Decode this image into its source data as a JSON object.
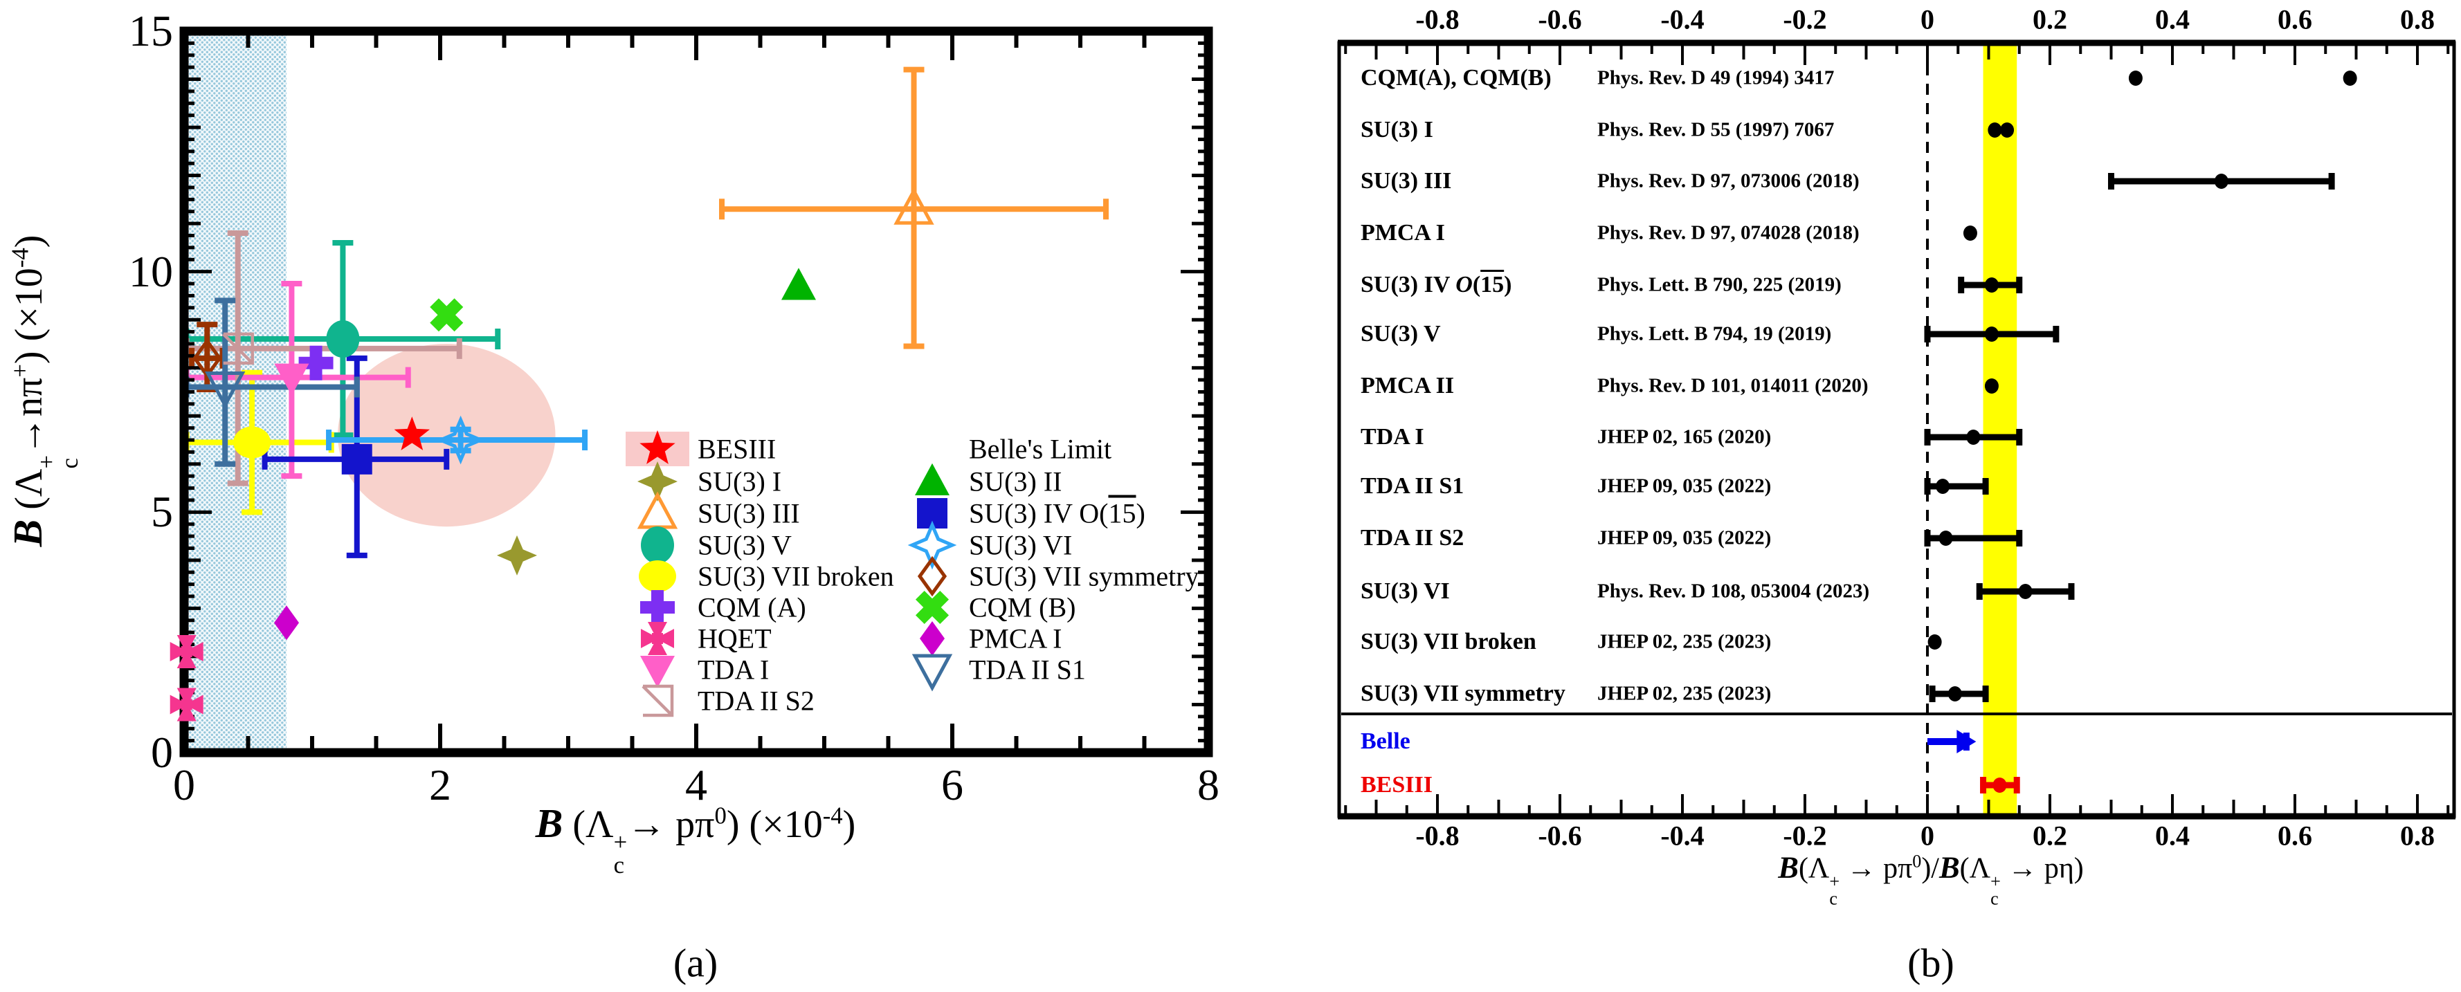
{
  "chart_data": [
    {
      "id": "panel-a",
      "type": "scatter",
      "caption": "(a)",
      "x_label": "\\b{B} (Λ^{+}_{c}→ pπ^{0}) (×10^{-4})",
      "y_label": "\\b{B} (Λ^{+}_{c}→nπ^{+}) (×10^{-4})",
      "xlim": [
        0,
        8
      ],
      "ylim": [
        0,
        15
      ],
      "x_ticks": [
        0,
        2,
        4,
        6,
        8
      ],
      "y_ticks": [
        0,
        5,
        10,
        15
      ],
      "belle_limit_band": {
        "x": [
          0,
          0.8
        ],
        "style": "hatched-lightblue",
        "dot_color": "#97c8dc",
        "bg_color": "#f2f8fb"
      },
      "besiii_contour": {
        "x": 2.05,
        "y": 6.6,
        "rx": 0.85,
        "ry": 1.9,
        "color": "#f8d2cc"
      },
      "series": [
        {
          "name": "BESIII",
          "marker": "star5",
          "color": "#ff0000",
          "open": false,
          "points": [
            {
              "x": 1.78,
              "y": 6.6
            }
          ]
        },
        {
          "name": "SU(3) I",
          "marker": "star4",
          "color": "#99992e",
          "open": false,
          "points": [
            {
              "x": 2.6,
              "y": 4.1
            }
          ]
        },
        {
          "name": "SU(3) III",
          "marker": "triangle-up",
          "color": "#ff9933",
          "open": true,
          "points": [
            {
              "x": 5.7,
              "y": 11.3,
              "xerr": [
                4.2,
                7.2
              ],
              "yerr": [
                8.45,
                14.2
              ]
            }
          ]
        },
        {
          "name": "SU(3) V",
          "marker": "circle",
          "color": "#10b48e",
          "open": false,
          "points": [
            {
              "x": 1.24,
              "y": 8.6,
              "xerr": [
                0.02,
                2.45
              ],
              "yerr": [
                6.6,
                10.6
              ]
            }
          ]
        },
        {
          "name": "SU(3) VII broken",
          "marker": "ellipse",
          "color": "#ffff00",
          "open": false,
          "points": [
            {
              "x": 0.53,
              "y": 6.45,
              "xerr": [
                0.02,
                1.15
              ],
              "yerr": [
                5.0,
                7.9
              ]
            }
          ]
        },
        {
          "name": "CQM (A)",
          "marker": "plus",
          "color": "#7d2ff2",
          "open": false,
          "points": [
            {
              "x": 1.03,
              "y": 8.1
            }
          ]
        },
        {
          "name": "HQET",
          "marker": "cross-pattee",
          "color": "#f5358f",
          "open": false,
          "points": [
            {
              "x": 0.02,
              "y": 2.1
            },
            {
              "x": 0.02,
              "y": 1.0
            }
          ]
        },
        {
          "name": "TDA I",
          "marker": "triangle-down",
          "color": "#ff5fc8",
          "open": false,
          "points": [
            {
              "x": 0.84,
              "y": 7.8,
              "xerr": [
                0.02,
                1.75
              ],
              "yerr": [
                5.75,
                9.75
              ]
            }
          ]
        },
        {
          "name": "TDA II S2",
          "marker": "corner-triangle",
          "color": "#c9989a",
          "open": true,
          "points": [
            {
              "x": 0.42,
              "y": 8.4,
              "xerr": [
                0.02,
                2.15
              ],
              "yerr": [
                5.6,
                10.8
              ]
            }
          ]
        },
        {
          "name": "SU(3) II",
          "marker": "triangle-up",
          "color": "#00b300",
          "open": false,
          "points": [
            {
              "x": 4.8,
              "y": 9.7
            }
          ]
        },
        {
          "name": "SU(3) IV O(15)",
          "marker": "square",
          "color": "#1414cc",
          "open": false,
          "points": [
            {
              "x": 1.35,
              "y": 6.1,
              "xerr": [
                0.63,
                2.05
              ],
              "yerr": [
                4.1,
                8.2
              ]
            }
          ]
        },
        {
          "name": "SU(3) VI",
          "marker": "star4",
          "color": "#30a5f5",
          "open": true,
          "points": [
            {
              "x": 2.16,
              "y": 6.5,
              "xerr": [
                1.13,
                3.13
              ],
              "yerr": [
                6.28,
                6.72
              ]
            }
          ]
        },
        {
          "name": "SU(3) VII symmetry",
          "marker": "diamond",
          "color": "#993300",
          "open": true,
          "points": [
            {
              "x": 0.18,
              "y": 8.2,
              "xerr": [
                0.06,
                0.3
              ],
              "yerr": [
                7.55,
                8.9
              ]
            }
          ]
        },
        {
          "name": "CQM (B)",
          "marker": "x-cross",
          "color": "#33dd11",
          "open": false,
          "points": [
            {
              "x": 2.05,
              "y": 9.1
            }
          ]
        },
        {
          "name": "PMCA I",
          "marker": "diamond",
          "color": "#cc00cc",
          "open": false,
          "points": [
            {
              "x": 0.8,
              "y": 2.7
            }
          ]
        },
        {
          "name": "TDA II S1",
          "marker": "triangle-down",
          "color": "#3d6f9e",
          "open": true,
          "points": [
            {
              "x": 0.32,
              "y": 7.6,
              "xerr": [
                0.02,
                1.35
              ],
              "yerr": [
                6.0,
                9.4
              ]
            }
          ]
        }
      ],
      "legend": {
        "col1": [
          {
            "label": "BESIII",
            "series": "BESIII",
            "bg": "#f9caca"
          },
          {
            "label": "SU(3) I",
            "series": "SU(3) I"
          },
          {
            "label": "SU(3) III",
            "series": "SU(3) III"
          },
          {
            "label": "SU(3) V",
            "series": "SU(3) V"
          },
          {
            "label": "SU(3) VII broken",
            "series": "SU(3) VII broken"
          },
          {
            "label": "CQM (A)",
            "series": "CQM (A)"
          },
          {
            "label": "HQET",
            "series": "HQET"
          },
          {
            "label": "TDA I",
            "series": "TDA I"
          },
          {
            "label": "TDA II S2",
            "series": "TDA II S2"
          }
        ],
        "col2": [
          {
            "label": "Belle's Limit",
            "series": null
          },
          {
            "label": "SU(3) II",
            "series": "SU(3) II"
          },
          {
            "label": "SU(3) IV O(\\o{15})",
            "series": "SU(3) IV O(15)"
          },
          {
            "label": "SU(3) VI",
            "series": "SU(3) VI"
          },
          {
            "label": "SU(3) VII symmetry",
            "series": "SU(3) VII symmetry"
          },
          {
            "label": "CQM (B)",
            "series": "CQM (B)"
          },
          {
            "label": "PMCA I",
            "series": "PMCA I"
          },
          {
            "label": "TDA II S1",
            "series": "TDA II S1"
          }
        ]
      }
    },
    {
      "id": "panel-b",
      "type": "forest",
      "caption": "(b)",
      "x_label": "\\b{B}(Λ^{+}_{c} → pπ^{0})/\\b{B}(Λ^{+}_{c} → pη)",
      "xlim": [
        -0.96,
        0.86
      ],
      "x_tick_labels": [
        "-0.8",
        "-0.6",
        "-0.4",
        "-0.2",
        "0",
        "0.2",
        "0.4",
        "0.6",
        "0.8"
      ],
      "x_tick_values": [
        -0.8,
        -0.6,
        -0.4,
        -0.2,
        0,
        0.2,
        0.4,
        0.6,
        0.8
      ],
      "highlight_band": {
        "x": [
          0.091,
          0.146
        ],
        "color": "#ffff00"
      },
      "zero_line": 0,
      "rows": [
        {
          "label": "CQM(A), CQM(B)",
          "ref": "Phys. Rev. D 49 (1994) 3417",
          "values": [
            0.34,
            0.69
          ],
          "err": null,
          "color": "#000000"
        },
        {
          "label": "SU(3) I",
          "ref": "Phys. Rev. D 55 (1997) 7067",
          "values": [
            0.11,
            0.13
          ],
          "err": null,
          "color": "#000000"
        },
        {
          "label": "SU(3) III",
          "ref": "Phys. Rev. D 97, 073006 (2018)",
          "values": [
            0.48
          ],
          "err": [
            0.3,
            0.66
          ],
          "color": "#000000"
        },
        {
          "label": "PMCA I",
          "ref": "Phys. Rev. D 97, 074028 (2018)",
          "values": [
            0.07
          ],
          "err": null,
          "color": "#000000"
        },
        {
          "label": "SU(3) IV \\i{O}(\\o{15})",
          "ref": "Phys. Lett. B 790, 225 (2019)",
          "values": [
            0.105
          ],
          "err": [
            0.055,
            0.15
          ],
          "color": "#000000"
        },
        {
          "label": "SU(3) V",
          "ref": "Phys. Lett. B 794, 19 (2019)",
          "values": [
            0.105
          ],
          "err": [
            0.0,
            0.21
          ],
          "color": "#000000"
        },
        {
          "label": "PMCA II",
          "ref": "Phys. Rev. D 101, 014011 (2020)",
          "values": [
            0.105
          ],
          "err": null,
          "color": "#000000"
        },
        {
          "label": "TDA I",
          "ref": "JHEP 02, 165 (2020)",
          "values": [
            0.075
          ],
          "err": [
            0.0,
            0.15
          ],
          "color": "#000000"
        },
        {
          "label": "TDA II S1",
          "ref": "JHEP 09, 035 (2022)",
          "values": [
            0.025
          ],
          "err": [
            0.0,
            0.095
          ],
          "color": "#000000"
        },
        {
          "label": "TDA II S2",
          "ref": "JHEP 09, 035 (2022)",
          "values": [
            0.03
          ],
          "err": [
            0.0,
            0.15
          ],
          "color": "#000000"
        },
        {
          "label": "SU(3) VI",
          "ref": "Phys. Rev. D 108, 053004 (2023)",
          "values": [
            0.16
          ],
          "err": [
            0.085,
            0.235
          ],
          "color": "#000000"
        },
        {
          "label": "SU(3) VII broken",
          "ref": "JHEP 02, 235 (2023)",
          "values": [
            0.012
          ],
          "err": null,
          "color": "#000000"
        },
        {
          "label": "SU(3) VII symmetry",
          "ref": "JHEP 02, 235 (2023)",
          "values": [
            0.045
          ],
          "err": [
            0.008,
            0.095
          ],
          "color": "#000000"
        },
        {
          "label": "Belle",
          "ref": "",
          "type": "limit-arrow",
          "limit": 0.075,
          "color": "#0000ee"
        },
        {
          "label": "BESIII",
          "ref": "",
          "values": [
            0.118
          ],
          "err": [
            0.091,
            0.146
          ],
          "color": "#ee0000"
        }
      ]
    }
  ]
}
